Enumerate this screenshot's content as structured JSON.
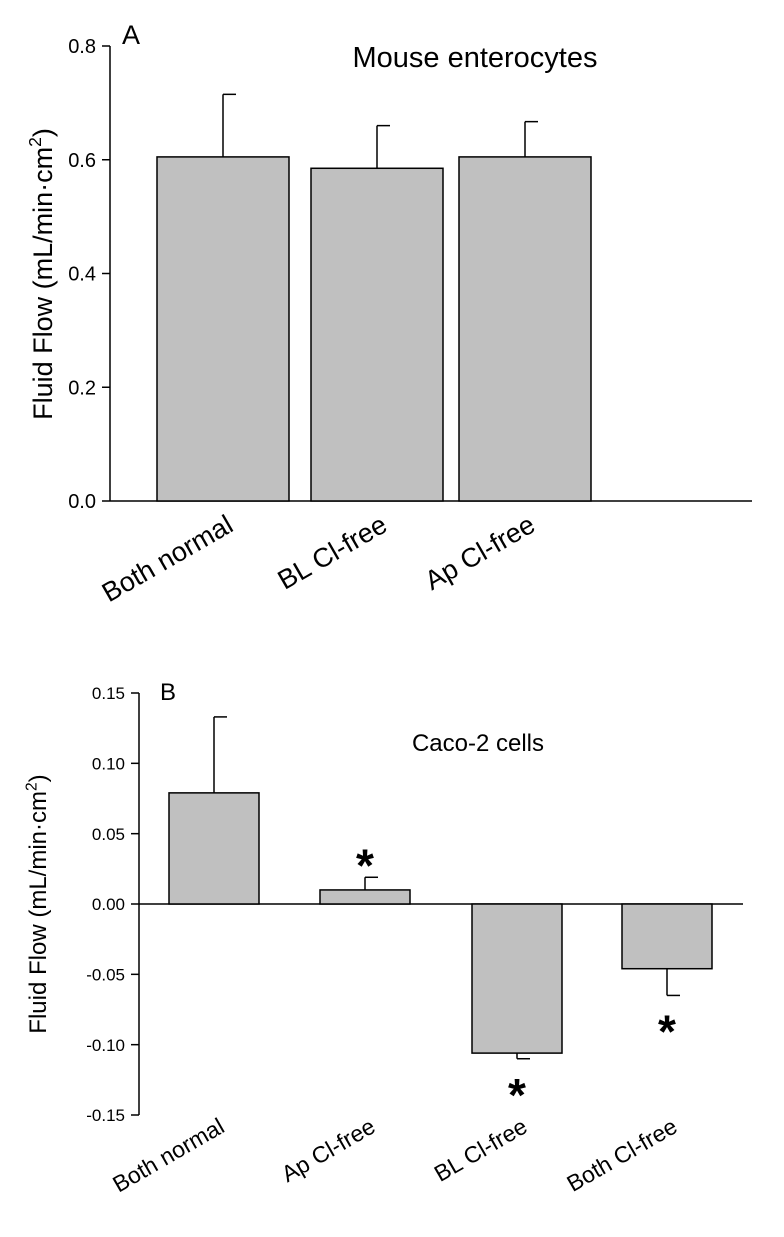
{
  "chart_data": [
    {
      "type": "bar",
      "panel_label": "A",
      "title": "Mouse enterocytes",
      "ylabel": "Fluid Flow (mL/min·cm",
      "ylabel_sup": "2",
      "ylabel_close": ")",
      "xlabel": "",
      "ylim": [
        0,
        0.8
      ],
      "yticks": [
        "0.0",
        "0.2",
        "0.4",
        "0.6",
        "0.8"
      ],
      "ytick_values": [
        0,
        0.2,
        0.4,
        0.6,
        0.8
      ],
      "categories": [
        "Both normal",
        "BL Cl-free",
        "Ap Cl-free"
      ],
      "values": [
        0.605,
        0.585,
        0.605
      ],
      "errors": [
        0.11,
        0.075,
        0.062
      ],
      "significance": [
        "",
        "",
        ""
      ],
      "grid": false
    },
    {
      "type": "bar",
      "panel_label": "B",
      "title": "Caco-2 cells",
      "ylabel": "Fluid Flow (mL/min·cm",
      "ylabel_sup": "2",
      "ylabel_close": ")",
      "xlabel": "",
      "ylim": [
        -0.15,
        0.15
      ],
      "yticks": [
        "-0.15",
        "-0.10",
        "-0.05",
        "0.00",
        "0.05",
        "0.10",
        "0.15"
      ],
      "ytick_values": [
        -0.15,
        -0.1,
        -0.05,
        0,
        0.05,
        0.1,
        0.15
      ],
      "categories": [
        "Both normal",
        "Ap Cl-free",
        "BL Cl-free",
        "Both Cl-free"
      ],
      "values": [
        0.079,
        0.01,
        -0.106,
        -0.046
      ],
      "errors": [
        0.054,
        0.009,
        0.004,
        0.019
      ],
      "significance": [
        "",
        "*",
        "*",
        "*"
      ],
      "grid": false
    }
  ]
}
